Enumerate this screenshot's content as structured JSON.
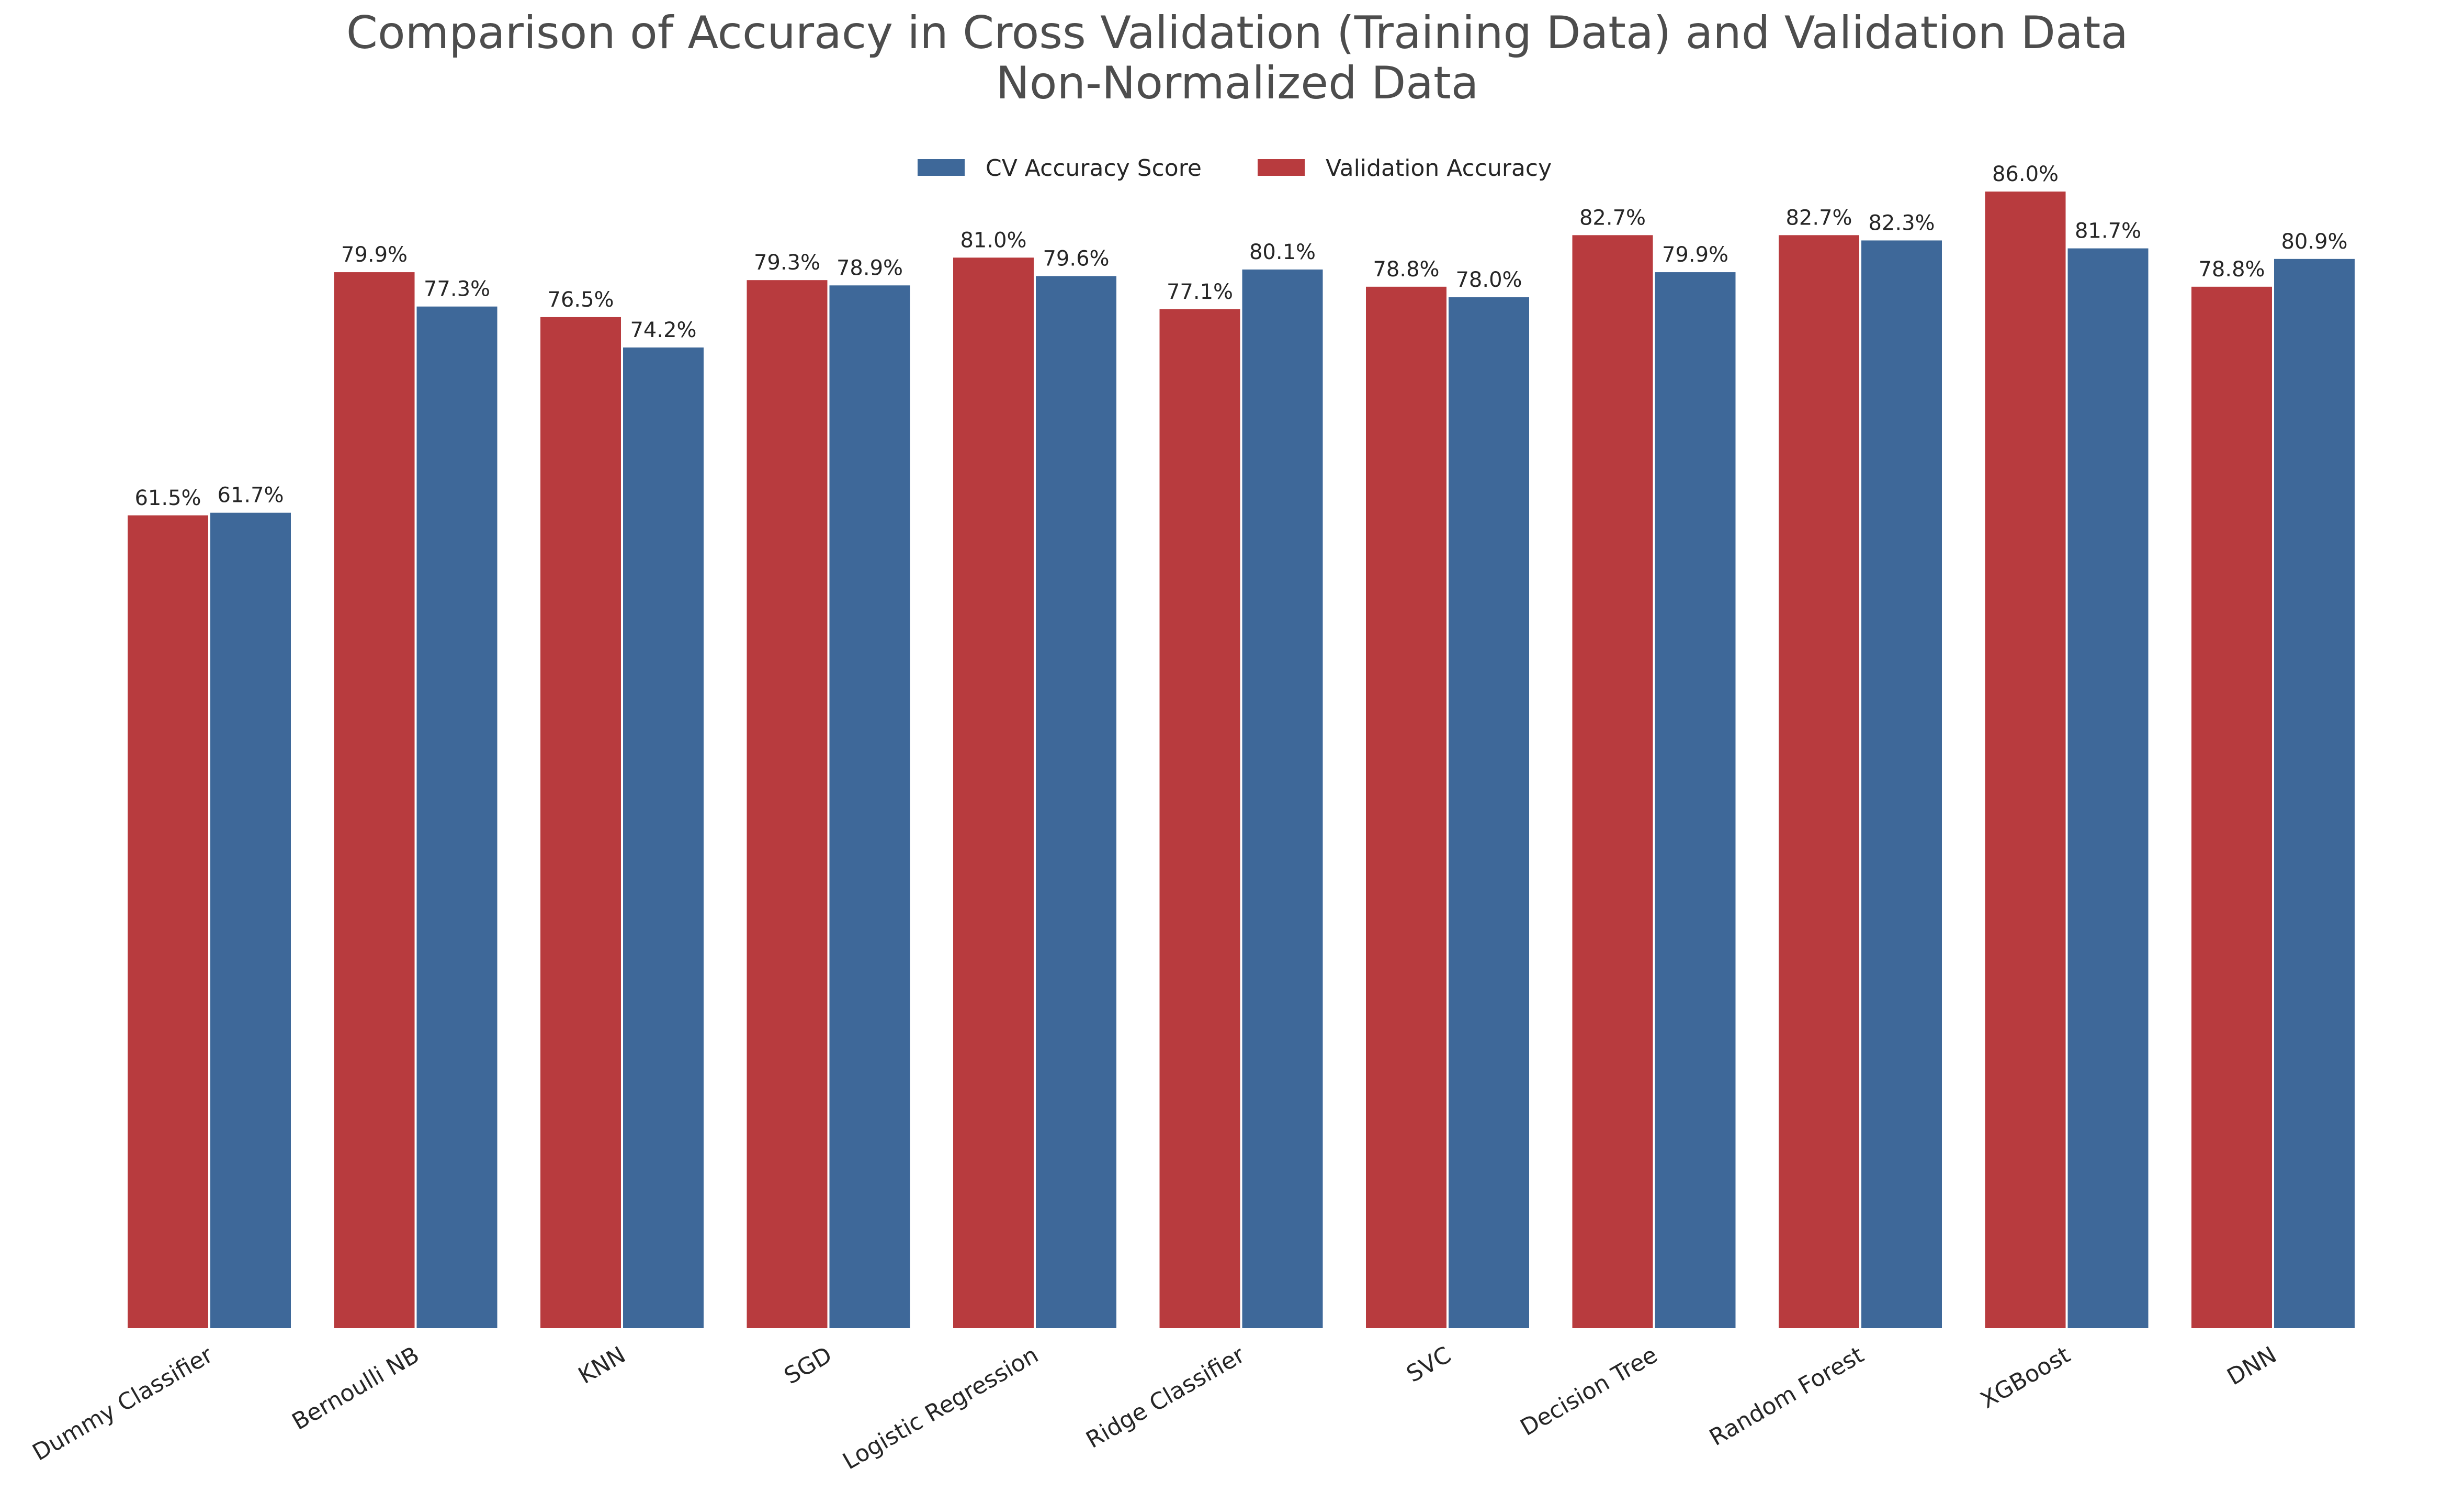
{
  "chart_data": {
    "type": "bar",
    "title": "Comparison of Accuracy in Cross Validation (Training Data) and Validation Data",
    "subtitle": "Non-Normalized Data",
    "xlabel": "",
    "ylabel": "",
    "ylim": [
      0,
      86.0
    ],
    "grid": false,
    "legend_position": "top-center",
    "categories": [
      "Dummy Classifier",
      "Bernoulli NB",
      "KNN",
      "SGD",
      "Logistic Regression",
      "Ridge Classifier",
      "SVC",
      "Decision Tree",
      "Random Forest",
      "XGBoost",
      "DNN"
    ],
    "series": [
      {
        "name": "Validation Accuracy",
        "color": "#b83b3e",
        "values": [
          61.5,
          79.9,
          76.5,
          79.3,
          81.0,
          77.1,
          78.8,
          82.7,
          82.7,
          86.0,
          78.8
        ],
        "labels": [
          "61.5%",
          "79.9%",
          "76.5%",
          "79.3%",
          "81.0%",
          "77.1%",
          "78.8%",
          "82.7%",
          "82.7%",
          "86.0%",
          "78.8%"
        ]
      },
      {
        "name": "CV Accuracy Score",
        "color": "#3e6899",
        "values": [
          61.7,
          77.3,
          74.2,
          78.9,
          79.6,
          80.1,
          78.0,
          79.9,
          82.3,
          81.7,
          80.9
        ],
        "labels": [
          "61.7%",
          "77.3%",
          "74.2%",
          "78.9%",
          "79.6%",
          "80.1%",
          "78.0%",
          "79.9%",
          "82.3%",
          "81.7%",
          "80.9%"
        ]
      }
    ],
    "legend_order": [
      "CV Accuracy Score",
      "Validation Accuracy"
    ]
  }
}
